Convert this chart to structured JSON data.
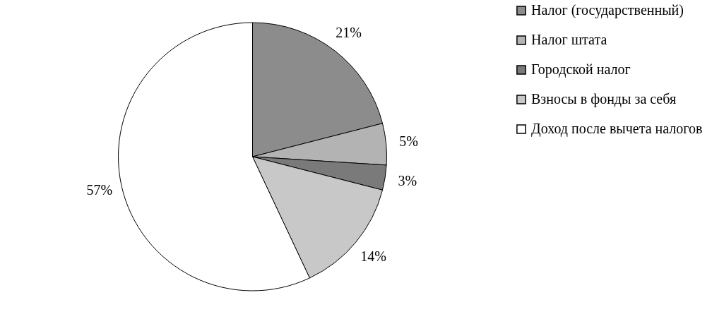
{
  "chart_data": {
    "type": "pie",
    "categories": [
      "Налог (государственный)",
      "Налог штата",
      "Городской налог",
      "Взносы в фонды за себя",
      "Доход после вычета налогов"
    ],
    "values": [
      21,
      5,
      3,
      14,
      57
    ],
    "colors": [
      "#8c8c8c",
      "#b3b3b3",
      "#7a7a7a",
      "#c8c8c8",
      "#ffffff"
    ],
    "value_labels": [
      "21%",
      "5%",
      "3%",
      "14%",
      "57%"
    ],
    "legend": "right"
  }
}
